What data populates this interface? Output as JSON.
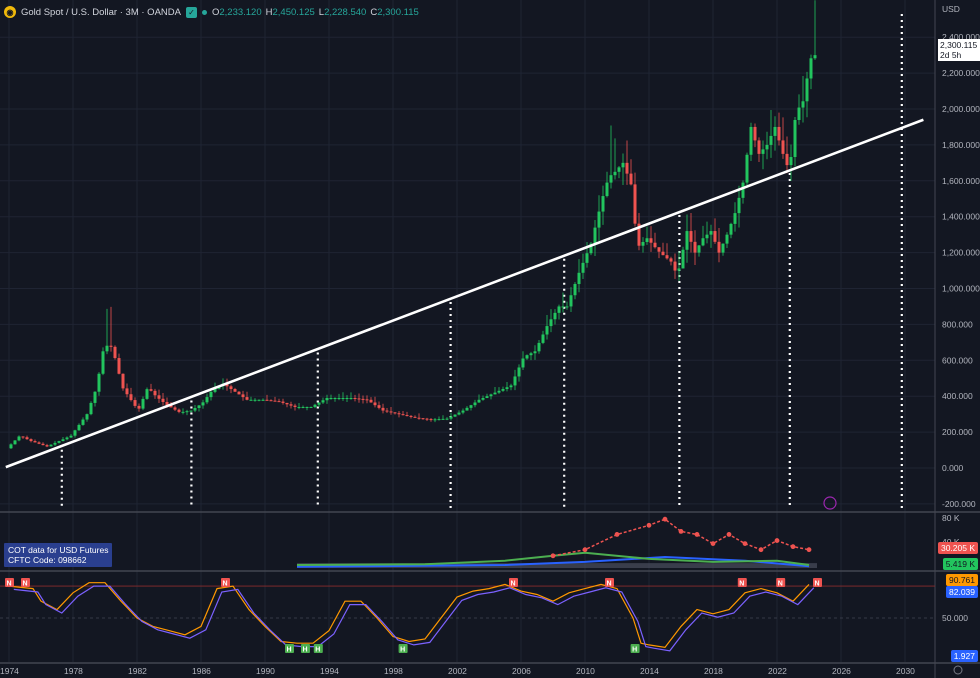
{
  "header": {
    "symbol": "Gold Spot / U.S. Dollar · 3M · OANDA",
    "open_label": "O",
    "open": "2,233.120",
    "high_label": "H",
    "high": "2,450.125",
    "low_label": "L",
    "low": "2,228.540",
    "close_label": "C",
    "close": "2,300.115",
    "logo_icon": "gold-coin-icon",
    "favorite_icon": "star-check-icon"
  },
  "axis": {
    "currency": "USD",
    "price_ticks": [
      "2,400.000",
      "2,200.000",
      "2,000.000",
      "1,800.000",
      "1,600.000",
      "1,400.000",
      "1,200.000",
      "1,000.000",
      "800.000",
      "600.000",
      "400.000",
      "200.000",
      "0.000",
      "-200.000"
    ],
    "x_ticks": [
      "1974",
      "1978",
      "1982",
      "1986",
      "1990",
      "1994",
      "1998",
      "2002",
      "2006",
      "2010",
      "2014",
      "2018",
      "2022",
      "2026",
      "2030"
    ]
  },
  "last_price": {
    "value": "2,300.115",
    "countdown": "2d 5h"
  },
  "cot": {
    "legend_line1": "COT data for USD Futures",
    "legend_line2": "CFTC Code: 098662",
    "top_tick": "80 K",
    "mid_tick": "40 K",
    "value_red": "30.205 K",
    "value_green": "5.419 K"
  },
  "oscillator": {
    "value_orange": "90.761",
    "value_blue": "82.039",
    "value_green": "1.927",
    "mid_tick": "50.000"
  },
  "colors": {
    "background": "#131722",
    "up": "#26a69a",
    "up_bright": "#22c55e",
    "down": "#ef5350",
    "trendline": "#ffffff",
    "grid": "#1f2433",
    "osc_line": "#7b61ff",
    "osc_signal": "#ff9800"
  },
  "chart_data": {
    "type": "candlestick",
    "x_unit": "year",
    "ylim": [
      -200,
      2500
    ],
    "price_axis_ticks": [
      2400,
      2200,
      2000,
      1800,
      1600,
      1400,
      1200,
      1000,
      800,
      600,
      400,
      200,
      0,
      -200
    ],
    "trendline": {
      "start": [
        1973.8,
        5
      ],
      "end": [
        2030.9,
        1940
      ]
    },
    "support_lines_years": [
      1977.3,
      1985.4,
      1993.3,
      2001.6,
      2008.7,
      2015.9,
      2022.8,
      2029.8
    ],
    "price_series": [
      [
        1974,
        110
      ],
      [
        1974.8,
        180
      ],
      [
        1975.5,
        150
      ],
      [
        1976.5,
        120
      ],
      [
        1977,
        140
      ],
      [
        1978,
        180
      ],
      [
        1979,
        300
      ],
      [
        1979.6,
        450
      ],
      [
        1980,
        650
      ],
      [
        1980.4,
        700
      ],
      [
        1980.8,
        600
      ],
      [
        1981.2,
        450
      ],
      [
        1982.2,
        320
      ],
      [
        1982.8,
        450
      ],
      [
        1983.3,
        400
      ],
      [
        1984,
        350
      ],
      [
        1984.8,
        310
      ],
      [
        1985.5,
        320
      ],
      [
        1986.2,
        360
      ],
      [
        1986.8,
        430
      ],
      [
        1987.5,
        470
      ],
      [
        1988,
        440
      ],
      [
        1989,
        380
      ],
      [
        1990,
        380
      ],
      [
        1991,
        370
      ],
      [
        1992,
        340
      ],
      [
        1993,
        340
      ],
      [
        1994,
        390
      ],
      [
        1995.5,
        390
      ],
      [
        1996.5,
        380
      ],
      [
        1997.5,
        320
      ],
      [
        1998.5,
        300
      ],
      [
        1999.5,
        280
      ],
      [
        2000.5,
        270
      ],
      [
        2001.5,
        275
      ],
      [
        2002.5,
        320
      ],
      [
        2003.5,
        380
      ],
      [
        2004.5,
        420
      ],
      [
        2005.5,
        460
      ],
      [
        2006.3,
        620
      ],
      [
        2007,
        650
      ],
      [
        2007.8,
        800
      ],
      [
        2008.5,
        900
      ],
      [
        2009,
        900
      ],
      [
        2009.8,
        1100
      ],
      [
        2010.5,
        1250
      ],
      [
        2011.2,
        1500
      ],
      [
        2011.6,
        1620
      ],
      [
        2012,
        1650
      ],
      [
        2012.5,
        1700
      ],
      [
        2013,
        1580
      ],
      [
        2013.4,
        1230
      ],
      [
        2014,
        1280
      ],
      [
        2014.8,
        1200
      ],
      [
        2015.5,
        1150
      ],
      [
        2015.9,
        1070
      ],
      [
        2016.5,
        1320
      ],
      [
        2017,
        1200
      ],
      [
        2017.5,
        1280
      ],
      [
        2018,
        1320
      ],
      [
        2018.5,
        1200
      ],
      [
        2019,
        1300
      ],
      [
        2019.5,
        1420
      ],
      [
        2020,
        1590
      ],
      [
        2020.5,
        1900
      ],
      [
        2021,
        1750
      ],
      [
        2021.5,
        1800
      ],
      [
        2022,
        1900
      ],
      [
        2022.5,
        1750
      ],
      [
        2022.9,
        1650
      ],
      [
        2023.3,
        1980
      ],
      [
        2023.8,
        2050
      ],
      [
        2024.1,
        2230
      ],
      [
        2024.3,
        2300
      ]
    ],
    "n_markers": [
      1974,
      1975,
      1987.5,
      2005.5,
      2011.5,
      2019.8,
      2022.2,
      2024.5
    ],
    "h_markers": [
      1991.5,
      1992.5,
      1993.3,
      1998.6,
      2013.1
    ],
    "oscillator_series": [
      [
        1974,
        88
      ],
      [
        1975.5,
        85
      ],
      [
        1976,
        70
      ],
      [
        1977,
        60
      ],
      [
        1978,
        80
      ],
      [
        1979,
        92
      ],
      [
        1980,
        92
      ],
      [
        1981,
        70
      ],
      [
        1982,
        50
      ],
      [
        1983,
        40
      ],
      [
        1984,
        35
      ],
      [
        1985,
        30
      ],
      [
        1986,
        40
      ],
      [
        1987,
        85
      ],
      [
        1988,
        88
      ],
      [
        1989,
        60
      ],
      [
        1990,
        40
      ],
      [
        1991,
        22
      ],
      [
        1992,
        20
      ],
      [
        1993,
        20
      ],
      [
        1994,
        35
      ],
      [
        1995,
        70
      ],
      [
        1996,
        70
      ],
      [
        1997,
        50
      ],
      [
        1998,
        28
      ],
      [
        1999,
        22
      ],
      [
        2000,
        25
      ],
      [
        2001,
        50
      ],
      [
        2002,
        75
      ],
      [
        2003,
        82
      ],
      [
        2004,
        85
      ],
      [
        2005,
        90
      ],
      [
        2006,
        82
      ],
      [
        2007,
        78
      ],
      [
        2008,
        70
      ],
      [
        2009,
        80
      ],
      [
        2010,
        85
      ],
      [
        2011,
        90
      ],
      [
        2012,
        85
      ],
      [
        2013,
        50
      ],
      [
        2013.5,
        20
      ],
      [
        2014,
        18
      ],
      [
        2015,
        15
      ],
      [
        2016,
        40
      ],
      [
        2017,
        60
      ],
      [
        2018,
        55
      ],
      [
        2019,
        60
      ],
      [
        2020,
        80
      ],
      [
        2021,
        85
      ],
      [
        2022,
        80
      ],
      [
        2023,
        70
      ],
      [
        2024,
        90
      ]
    ],
    "cot_values": {
      "x_start": 1992,
      "x_end": 2024.5,
      "red": [
        [
          2008,
          20
        ],
        [
          2010,
          30
        ],
        [
          2012,
          55
        ],
        [
          2014,
          70
        ],
        [
          2015,
          80
        ],
        [
          2016,
          60
        ],
        [
          2017,
          55
        ],
        [
          2018,
          40
        ],
        [
          2019,
          55
        ],
        [
          2020,
          40
        ],
        [
          2021,
          30
        ],
        [
          2022,
          45
        ],
        [
          2023,
          35
        ],
        [
          2024,
          30
        ]
      ],
      "green": [
        [
          1992,
          5
        ],
        [
          2000,
          6
        ],
        [
          2005,
          12
        ],
        [
          2008,
          20
        ],
        [
          2010,
          25
        ],
        [
          2014,
          15
        ],
        [
          2018,
          10
        ],
        [
          2022,
          12
        ],
        [
          2024,
          5
        ]
      ],
      "blue": [
        [
          1992,
          2
        ],
        [
          2005,
          5
        ],
        [
          2010,
          10
        ],
        [
          2015,
          18
        ],
        [
          2020,
          12
        ],
        [
          2024,
          3
        ]
      ]
    }
  }
}
